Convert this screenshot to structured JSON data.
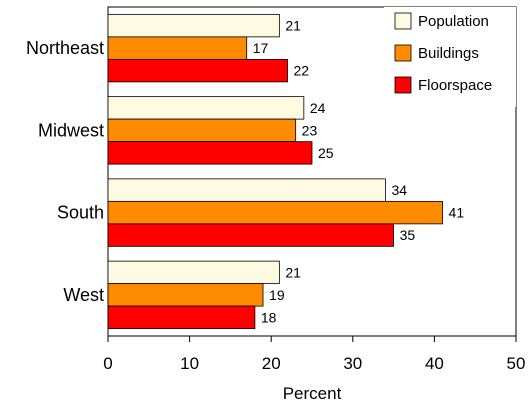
{
  "chart_data": {
    "type": "bar",
    "orientation": "horizontal",
    "categories": [
      "Northeast",
      "Midwest",
      "South",
      "West"
    ],
    "series": [
      {
        "name": "Population",
        "values": [
          21,
          24,
          34,
          21
        ],
        "color": "#FFFBE3"
      },
      {
        "name": "Buildings",
        "values": [
          17,
          23,
          41,
          19
        ],
        "color": "#FF8C00"
      },
      {
        "name": "Floorspace",
        "values": [
          22,
          25,
          35,
          18
        ],
        "color": "#FF0000"
      }
    ],
    "xlabel": "Percent",
    "ylabel": "",
    "title": "",
    "xlim": [
      0,
      50
    ],
    "xticks": [
      0,
      10,
      20,
      30,
      40,
      50
    ],
    "grid": false,
    "legend_position": "top-right"
  }
}
